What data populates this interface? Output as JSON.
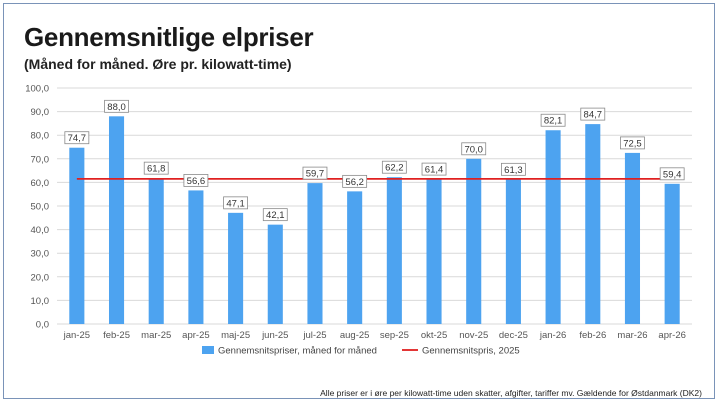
{
  "page": {
    "title": "Gennemsnitlige elpriser",
    "subtitle": "(Måned for måned. Øre pr. kilowatt-time)",
    "footnote": "Alle priser er i øre per kilowatt-time uden skatter, afgifter, tariffer mv. Gældende for Østdanmark (DK2)"
  },
  "chart_data": {
    "type": "bar",
    "title": "Gennemsnitlige elpriser",
    "subtitle": "(Måned for måned. Øre pr. kilowatt-time)",
    "categories": [
      "jan-25",
      "feb-25",
      "mar-25",
      "apr-25",
      "maj-25",
      "jun-25",
      "jul-25",
      "aug-25",
      "sep-25",
      "okt-25",
      "nov-25",
      "dec-25",
      "jan-26",
      "feb-26",
      "mar-26",
      "apr-26"
    ],
    "series": [
      {
        "name": "Gennemsnitspriser, måned for måned",
        "type": "bar",
        "color": "#4da3f0",
        "values": [
          74.7,
          88.0,
          61.8,
          56.6,
          47.1,
          42.1,
          59.7,
          56.2,
          62.2,
          61.4,
          70.0,
          61.3,
          82.1,
          84.7,
          72.5,
          59.4
        ],
        "labels": [
          "74,7",
          "88,0",
          "61,8",
          "56,6",
          "47,1",
          "42,1",
          "59,7",
          "56,2",
          "62,2",
          "61,4",
          "70,0",
          "61,3",
          "82,1",
          "84,7",
          "72,5",
          "59,4"
        ]
      },
      {
        "name": "Gennemsnitspris, 2025",
        "type": "line",
        "color": "#e02020",
        "value": 61.5
      }
    ],
    "ylim": [
      0,
      100
    ],
    "yticks": [
      0,
      10,
      20,
      30,
      40,
      50,
      60,
      70,
      80,
      90,
      100
    ],
    "ytick_labels": [
      "0,0",
      "10,0",
      "20,0",
      "30,0",
      "40,0",
      "50,0",
      "60,0",
      "70,0",
      "80,0",
      "90,0",
      "100,0"
    ],
    "grid": true,
    "legend": "bottom"
  }
}
